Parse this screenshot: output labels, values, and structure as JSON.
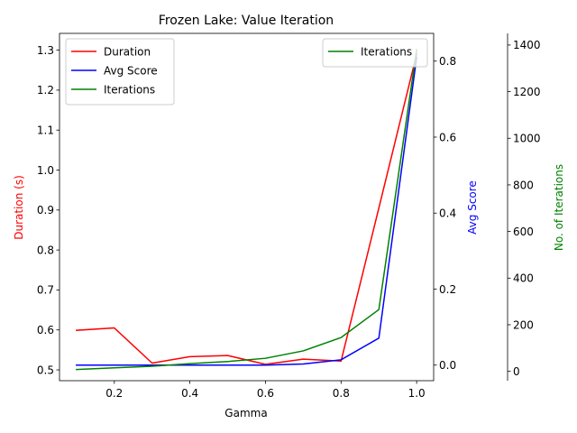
{
  "chart_data": {
    "type": "line",
    "title": "Frozen Lake: Value Iteration",
    "xlabel": "Gamma",
    "x": [
      0.1,
      0.2,
      0.3,
      0.4,
      0.5,
      0.6,
      0.7,
      0.8,
      0.9,
      1.0
    ],
    "xlim": [
      0.055,
      1.045
    ],
    "xticks": [
      0.2,
      0.4,
      0.6,
      0.8,
      1.0
    ],
    "xtick_labels": [
      "0.2",
      "0.4",
      "0.6",
      "0.8",
      "1.0"
    ],
    "axes": {
      "left": {
        "label": "Duration (s)",
        "color": "#ff0000",
        "lim": [
          0.473,
          1.342
        ],
        "ticks": [
          0.5,
          0.6,
          0.7,
          0.8,
          0.9,
          1.0,
          1.1,
          1.2,
          1.3
        ],
        "tick_labels": [
          "0.5",
          "0.6",
          "0.7",
          "0.8",
          "0.9",
          "1.0",
          "1.1",
          "1.2",
          "1.3"
        ]
      },
      "right": {
        "label": "Avg Score",
        "color": "#0000ff",
        "lim": [
          -0.041,
          0.873
        ],
        "ticks": [
          0.0,
          0.2,
          0.4,
          0.6,
          0.8
        ],
        "tick_labels": [
          "0.0",
          "0.2",
          "0.4",
          "0.6",
          "0.8"
        ]
      },
      "right2": {
        "label": "No. of Iterations",
        "color": "#008000",
        "lim": [
          -40,
          1450
        ],
        "ticks": [
          0,
          200,
          400,
          600,
          800,
          1000,
          1200,
          1400
        ],
        "tick_labels": [
          "0",
          "200",
          "400",
          "600",
          "800",
          "1000",
          "1200",
          "1400"
        ]
      }
    },
    "series": [
      {
        "name": "Duration",
        "axis": "left",
        "color": "#ff0000",
        "values": [
          0.599,
          0.605,
          0.517,
          0.533,
          0.536,
          0.514,
          0.527,
          0.522,
          0.905,
          1.29
        ]
      },
      {
        "name": "Avg Score",
        "axis": "right",
        "color": "#0000ff",
        "values": [
          0.0,
          0.0,
          0.0,
          0.0,
          0.0,
          0.0,
          0.003,
          0.014,
          0.071,
          0.81
        ]
      },
      {
        "name": "Iterations",
        "axis": "right2",
        "color": "#008000",
        "values": [
          8,
          15,
          22,
          33,
          42,
          56,
          88,
          145,
          265,
          1380
        ]
      }
    ],
    "legends": [
      {
        "placement": "upper-left",
        "entries": [
          {
            "name": "Duration",
            "color": "#ff0000"
          },
          {
            "name": "Avg Score",
            "color": "#0000ff"
          },
          {
            "name": "Iterations",
            "color": "#008000"
          }
        ]
      },
      {
        "placement": "upper-right",
        "entries": [
          {
            "name": "Iterations",
            "color": "#008000"
          }
        ]
      }
    ],
    "grid": false
  }
}
